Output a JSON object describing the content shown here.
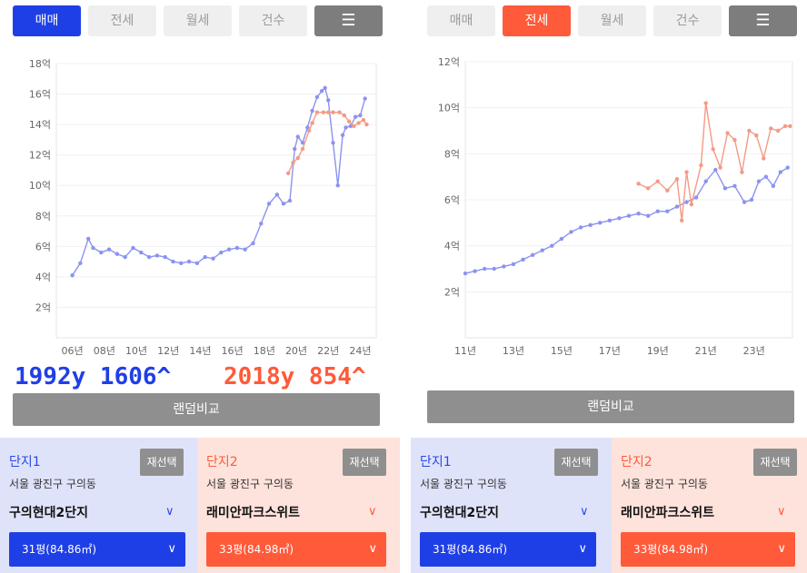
{
  "left": {
    "tabs": [
      {
        "label": "매매",
        "state": "active"
      },
      {
        "label": "전세",
        "state": "inactive"
      },
      {
        "label": "월세",
        "state": "inactive"
      },
      {
        "label": "건수",
        "state": "inactive"
      },
      {
        "label": "list-icon",
        "state": "icon"
      }
    ],
    "overlay_left": "1992y 1606^",
    "overlay_right": "2018y 854^",
    "random_button": "랜덤비교",
    "card1": {
      "label": "단지1",
      "reselect": "재선택",
      "address": "서울 광진구 구의동",
      "name": "구의현대2단지",
      "size": "31평(84.86㎡)"
    },
    "card2": {
      "label": "단지2",
      "reselect": "재선택",
      "address": "서울 광진구 구의동",
      "name": "래미안파크스위트",
      "size": "33평(84.98㎡)"
    }
  },
  "right": {
    "tabs": [
      {
        "label": "매매",
        "state": "inactive"
      },
      {
        "label": "전세",
        "state": "active"
      },
      {
        "label": "월세",
        "state": "inactive"
      },
      {
        "label": "건수",
        "state": "inactive"
      },
      {
        "label": "list-icon",
        "state": "icon"
      }
    ],
    "random_button": "랜덤비교",
    "card1": {
      "label": "단지1",
      "reselect": "재선택",
      "address": "서울 광진구 구의동",
      "name": "구의현대2단지",
      "size": "31평(84.86㎡)"
    },
    "card2": {
      "label": "단지2",
      "reselect": "재선택",
      "address": "서울 광진구 구의동",
      "name": "래미안파크스위트",
      "size": "33평(84.98㎡)"
    }
  },
  "colors": {
    "blue": "#1f3fe6",
    "red": "#ff5a3a",
    "series_blue": "#8b93f0",
    "series_red": "#f49a85"
  },
  "chart_data": [
    {
      "type": "line",
      "ylim": [
        0,
        18
      ],
      "xlim": [
        2005,
        2025
      ],
      "yticks": [
        2,
        4,
        6,
        8,
        10,
        12,
        14,
        16,
        18
      ],
      "ytick_labels": [
        "2억",
        "4억",
        "6억",
        "8억",
        "10억",
        "12억",
        "14억",
        "16억",
        "18억"
      ],
      "xticks": [
        2006,
        2008,
        2010,
        2012,
        2014,
        2016,
        2018,
        2020,
        2022,
        2024
      ],
      "xtick_labels": [
        "06년",
        "08년",
        "10년",
        "12년",
        "14년",
        "16년",
        "18년",
        "20년",
        "22년",
        "24년"
      ],
      "series": [
        {
          "color": "blue",
          "x": [
            2006.0,
            2006.5,
            2007.0,
            2007.3,
            2007.8,
            2008.3,
            2008.8,
            2009.3,
            2009.8,
            2010.3,
            2010.8,
            2011.3,
            2011.8,
            2012.3,
            2012.8,
            2013.3,
            2013.8,
            2014.3,
            2014.8,
            2015.3,
            2015.8,
            2016.3,
            2016.8,
            2017.3,
            2017.8,
            2018.3,
            2018.8,
            2019.2,
            2019.6,
            2019.9,
            2020.1,
            2020.4,
            2020.7,
            2021.0,
            2021.3,
            2021.6,
            2021.8,
            2022.0,
            2022.3,
            2022.6,
            2022.9,
            2023.1,
            2023.4,
            2023.7,
            2024.0,
            2024.3
          ],
          "y": [
            4.1,
            4.9,
            6.5,
            5.9,
            5.6,
            5.8,
            5.5,
            5.3,
            5.9,
            5.6,
            5.3,
            5.4,
            5.3,
            5.0,
            4.9,
            5.0,
            4.9,
            5.3,
            5.2,
            5.6,
            5.8,
            5.9,
            5.8,
            6.2,
            7.5,
            8.8,
            9.4,
            8.8,
            9.0,
            12.4,
            13.2,
            12.8,
            13.8,
            14.9,
            15.8,
            16.2,
            16.4,
            15.6,
            12.8,
            10.0,
            13.3,
            13.8,
            13.9,
            14.5,
            14.6,
            15.7
          ]
        },
        {
          "color": "red",
          "x": [
            2019.5,
            2019.8,
            2020.1,
            2020.4,
            2020.8,
            2021.0,
            2021.3,
            2021.7,
            2022.0,
            2022.3,
            2022.7,
            2023.0,
            2023.3,
            2023.6,
            2023.9,
            2024.2,
            2024.4
          ],
          "y": [
            10.8,
            11.5,
            11.8,
            12.4,
            13.6,
            14.1,
            14.8,
            14.8,
            14.8,
            14.8,
            14.8,
            14.6,
            14.2,
            13.9,
            14.1,
            14.3,
            14.0
          ]
        }
      ]
    },
    {
      "type": "line",
      "ylim": [
        0,
        12
      ],
      "xlim": [
        2011,
        2024.6
      ],
      "yticks": [
        2,
        4,
        6,
        8,
        10,
        12
      ],
      "ytick_labels": [
        "2억",
        "4억",
        "6억",
        "8억",
        "10억",
        "12억"
      ],
      "xticks": [
        2011,
        2013,
        2015,
        2017,
        2019,
        2021,
        2023
      ],
      "xtick_labels": [
        "11년",
        "13년",
        "15년",
        "17년",
        "19년",
        "21년",
        "23년"
      ],
      "series": [
        {
          "color": "blue",
          "x": [
            2011.0,
            2011.4,
            2011.8,
            2012.2,
            2012.6,
            2013.0,
            2013.4,
            2013.8,
            2014.2,
            2014.6,
            2015.0,
            2015.4,
            2015.8,
            2016.2,
            2016.6,
            2017.0,
            2017.4,
            2017.8,
            2018.2,
            2018.6,
            2019.0,
            2019.4,
            2019.8,
            2020.2,
            2020.6,
            2021.0,
            2021.4,
            2021.8,
            2022.2,
            2022.6,
            2022.9,
            2023.2,
            2023.5,
            2023.8,
            2024.1,
            2024.4
          ],
          "y": [
            2.8,
            2.9,
            3.0,
            3.0,
            3.1,
            3.2,
            3.4,
            3.6,
            3.8,
            4.0,
            4.3,
            4.6,
            4.8,
            4.9,
            5.0,
            5.1,
            5.2,
            5.3,
            5.4,
            5.3,
            5.5,
            5.5,
            5.7,
            5.9,
            6.1,
            6.8,
            7.3,
            6.5,
            6.6,
            5.9,
            6.0,
            6.8,
            7.0,
            6.6,
            7.2,
            7.4
          ]
        },
        {
          "color": "red",
          "x": [
            2018.2,
            2018.6,
            2019.0,
            2019.4,
            2019.8,
            2020.0,
            2020.2,
            2020.4,
            2020.8,
            2021.0,
            2021.3,
            2021.6,
            2021.9,
            2022.2,
            2022.5,
            2022.8,
            2023.1,
            2023.4,
            2023.7,
            2024.0,
            2024.3,
            2024.5
          ],
          "y": [
            6.7,
            6.5,
            6.8,
            6.4,
            6.9,
            5.1,
            7.2,
            5.8,
            7.5,
            10.2,
            8.2,
            7.4,
            8.9,
            8.6,
            7.2,
            9.0,
            8.8,
            7.8,
            9.1,
            9.0,
            9.2,
            9.2
          ]
        }
      ]
    }
  ]
}
